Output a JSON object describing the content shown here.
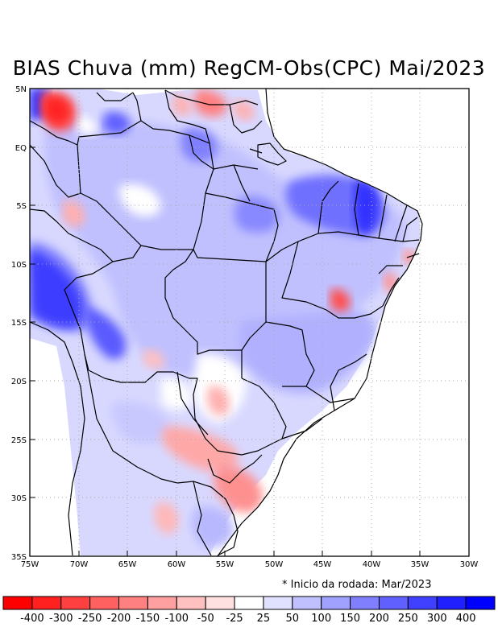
{
  "title": "BIAS Chuva (mm) RegCM-Obs(CPC) Mai/2023",
  "note": "* Inicio da rodada: Mar/2023",
  "y_ticks": [
    "5N",
    "EQ",
    "5S",
    "10S",
    "15S",
    "20S",
    "25S",
    "30S",
    "35S"
  ],
  "x_ticks": [
    "75W",
    "70W",
    "65W",
    "60W",
    "55W",
    "50W",
    "45W",
    "40W",
    "35W",
    "30W"
  ],
  "colorbar": {
    "colors": [
      "#ff0000",
      "#ff2020",
      "#ff4040",
      "#ff6060",
      "#ff8080",
      "#ffa0a0",
      "#ffc0c0",
      "#ffe0e0",
      "#ffffff",
      "#e0e0ff",
      "#c0c0ff",
      "#a0a0ff",
      "#8080ff",
      "#6060ff",
      "#4040ff",
      "#2020ff",
      "#0000ff"
    ],
    "labels": [
      "-400",
      "-300",
      "-250",
      "-200",
      "-150",
      "-100",
      "-50",
      "-25",
      "25",
      "50",
      "100",
      "150",
      "200",
      "250",
      "300",
      "400"
    ]
  },
  "colors": {
    "grid": "#aaaaaa",
    "border": "#000000"
  }
}
